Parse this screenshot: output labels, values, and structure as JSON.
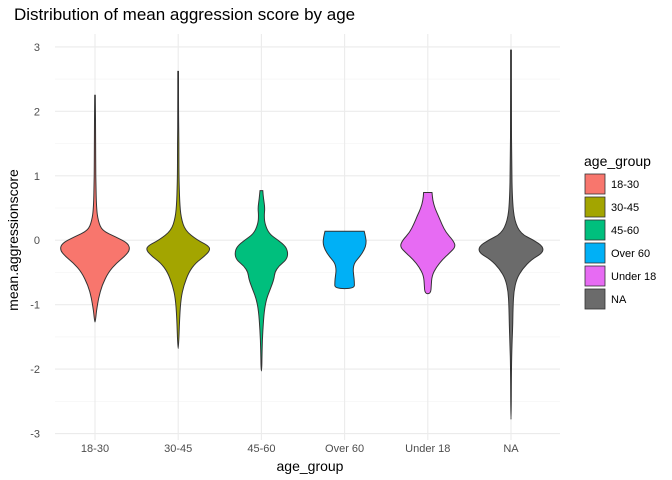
{
  "chart_data": {
    "type": "violin",
    "title": "Distribution of mean aggression score by age",
    "xlabel": "age_group",
    "ylabel": "mean.aggressionscore",
    "ylim": [
      -3.1,
      3.2
    ],
    "yticks": [
      3,
      2,
      1,
      0,
      -1,
      -2,
      -3
    ],
    "grid": true,
    "legend": {
      "title": "age_group",
      "position": "right",
      "entries": [
        "18-30",
        "30-45",
        "45-60",
        "Over 60",
        "Under 18",
        "NA"
      ]
    },
    "categories": [
      "18-30",
      "30-45",
      "45-60",
      "Over 60",
      "Under 18",
      "NA"
    ],
    "series": [
      {
        "category": "18-30",
        "color": "#F8766D",
        "min": -1.27,
        "max": 2.25,
        "density": [
          [
            2.25,
            0.01
          ],
          [
            1.5,
            0.02
          ],
          [
            1.0,
            0.02
          ],
          [
            0.5,
            0.04
          ],
          [
            0.3,
            0.09
          ],
          [
            0.15,
            0.2
          ],
          [
            0.05,
            0.6
          ],
          [
            -0.05,
            0.95
          ],
          [
            -0.15,
            1.0
          ],
          [
            -0.25,
            0.85
          ],
          [
            -0.35,
            0.62
          ],
          [
            -0.5,
            0.38
          ],
          [
            -0.7,
            0.2
          ],
          [
            -0.9,
            0.1
          ],
          [
            -1.1,
            0.04
          ],
          [
            -1.27,
            0.01
          ]
        ]
      },
      {
        "category": "30-45",
        "color": "#A3A500",
        "min": -1.68,
        "max": 2.62,
        "density": [
          [
            2.62,
            0.01
          ],
          [
            2.0,
            0.01
          ],
          [
            1.5,
            0.02
          ],
          [
            1.0,
            0.02
          ],
          [
            0.6,
            0.04
          ],
          [
            0.35,
            0.08
          ],
          [
            0.15,
            0.2
          ],
          [
            0.0,
            0.55
          ],
          [
            -0.08,
            0.85
          ],
          [
            -0.15,
            0.92
          ],
          [
            -0.25,
            0.75
          ],
          [
            -0.35,
            0.5
          ],
          [
            -0.5,
            0.3
          ],
          [
            -0.7,
            0.16
          ],
          [
            -0.9,
            0.08
          ],
          [
            -1.2,
            0.04
          ],
          [
            -1.68,
            0.01
          ]
        ]
      },
      {
        "category": "45-60",
        "color": "#00BF7D",
        "min": -2.03,
        "max": 0.77,
        "density": [
          [
            0.77,
            0.04
          ],
          [
            0.65,
            0.06
          ],
          [
            0.5,
            0.1
          ],
          [
            0.38,
            0.08
          ],
          [
            0.25,
            0.1
          ],
          [
            0.1,
            0.22
          ],
          [
            0.0,
            0.48
          ],
          [
            -0.1,
            0.7
          ],
          [
            -0.2,
            0.76
          ],
          [
            -0.3,
            0.72
          ],
          [
            -0.4,
            0.5
          ],
          [
            -0.5,
            0.38
          ],
          [
            -0.6,
            0.36
          ],
          [
            -0.75,
            0.26
          ],
          [
            -0.9,
            0.15
          ],
          [
            -1.1,
            0.08
          ],
          [
            -1.4,
            0.04
          ],
          [
            -1.7,
            0.02
          ],
          [
            -2.03,
            0.01
          ]
        ]
      },
      {
        "category": "Over 60",
        "color": "#00B0F6",
        "min": -0.75,
        "max": 0.14,
        "density": [
          [
            0.14,
            0.56
          ],
          [
            0.05,
            0.6
          ],
          [
            -0.05,
            0.62
          ],
          [
            -0.15,
            0.56
          ],
          [
            -0.25,
            0.44
          ],
          [
            -0.35,
            0.28
          ],
          [
            -0.45,
            0.24
          ],
          [
            -0.55,
            0.26
          ],
          [
            -0.65,
            0.28
          ],
          [
            -0.75,
            0.28
          ]
        ]
      },
      {
        "category": "Under 18",
        "color": "#E76BF3",
        "min": -0.83,
        "max": 0.74,
        "density": [
          [
            0.74,
            0.12
          ],
          [
            0.62,
            0.14
          ],
          [
            0.5,
            0.2
          ],
          [
            0.38,
            0.3
          ],
          [
            0.25,
            0.4
          ],
          [
            0.12,
            0.52
          ],
          [
            0.0,
            0.72
          ],
          [
            -0.1,
            0.8
          ],
          [
            -0.2,
            0.62
          ],
          [
            -0.3,
            0.42
          ],
          [
            -0.42,
            0.24
          ],
          [
            -0.55,
            0.12
          ],
          [
            -0.7,
            0.1
          ],
          [
            -0.83,
            0.08
          ]
        ]
      },
      {
        "category": "NA",
        "color": "#6B6B6B",
        "min": -2.78,
        "max": 2.95,
        "density": [
          [
            2.95,
            0.01
          ],
          [
            2.0,
            0.01
          ],
          [
            1.2,
            0.02
          ],
          [
            0.6,
            0.04
          ],
          [
            0.3,
            0.1
          ],
          [
            0.1,
            0.28
          ],
          [
            0.0,
            0.65
          ],
          [
            -0.1,
            0.92
          ],
          [
            -0.2,
            0.9
          ],
          [
            -0.3,
            0.58
          ],
          [
            -0.45,
            0.32
          ],
          [
            -0.6,
            0.16
          ],
          [
            -0.8,
            0.08
          ],
          [
            -1.0,
            0.06
          ],
          [
            -1.3,
            0.05
          ],
          [
            -1.6,
            0.03
          ],
          [
            -2.0,
            0.01
          ],
          [
            -2.78,
            0.005
          ]
        ]
      }
    ]
  }
}
